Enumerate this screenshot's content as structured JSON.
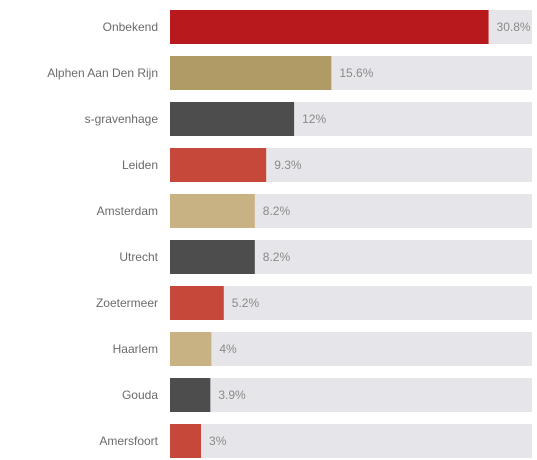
{
  "chart_data": {
    "type": "bar",
    "orientation": "horizontal",
    "categories": [
      "Onbekend",
      "Alphen Aan Den Rijn",
      "s-gravenhage",
      "Leiden",
      "Amsterdam",
      "Utrecht",
      "Zoetermeer",
      "Haarlem",
      "Gouda",
      "Amersfoort"
    ],
    "values": [
      30.8,
      15.6,
      12,
      9.3,
      8.2,
      8.2,
      5.2,
      4,
      3.9,
      3
    ],
    "value_labels": [
      "30.8%",
      "15.6%",
      "12%",
      "9.3%",
      "8.2%",
      "8.2%",
      "5.2%",
      "4%",
      "3.9%",
      "3%"
    ],
    "bar_colors": [
      "#b8191c",
      "#b09a66",
      "#4d4d4d",
      "#c5483a",
      "#c8b283",
      "#4d4d4d",
      "#c5483a",
      "#c8b283",
      "#4d4d4d",
      "#c5483a"
    ],
    "track_color": "#e6e6ea",
    "xlim": [
      0,
      35
    ],
    "grid": false,
    "legend": "none",
    "title": "",
    "xlabel": "",
    "ylabel": ""
  }
}
